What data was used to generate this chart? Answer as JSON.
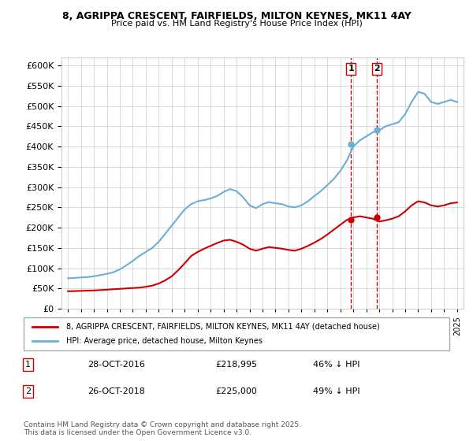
{
  "title1": "8, AGRIPPA CRESCENT, FAIRFIELDS, MILTON KEYNES, MK11 4AY",
  "title2": "Price paid vs. HM Land Registry's House Price Index (HPI)",
  "legend1": "8, AGRIPPA CRESCENT, FAIRFIELDS, MILTON KEYNES, MK11 4AY (detached house)",
  "legend2": "HPI: Average price, detached house, Milton Keynes",
  "annotation1": {
    "num": "1",
    "date": "28-OCT-2016",
    "price": "£218,995",
    "hpi": "46% ↓ HPI"
  },
  "annotation2": {
    "num": "2",
    "date": "26-OCT-2018",
    "price": "£225,000",
    "hpi": "49% ↓ HPI"
  },
  "footer": "Contains HM Land Registry data © Crown copyright and database right 2025.\nThis data is licensed under the Open Government Licence v3.0.",
  "hpi_color": "#6baed6",
  "price_color": "#cc0000",
  "marker1_x": 2016.83,
  "marker2_x": 2018.83,
  "marker1_y_hpi": 405000,
  "marker2_y_hpi": 440000,
  "marker1_y_price": 218995,
  "marker2_y_price": 225000,
  "ylim": [
    0,
    620000
  ],
  "xlim_start": 1994.5,
  "xlim_end": 2025.5,
  "hpi_data": {
    "years": [
      1995,
      1995.5,
      1996,
      1996.5,
      1997,
      1997.5,
      1998,
      1998.5,
      1999,
      1999.5,
      2000,
      2000.5,
      2001,
      2001.5,
      2002,
      2002.5,
      2003,
      2003.5,
      2004,
      2004.5,
      2005,
      2005.5,
      2006,
      2006.5,
      2007,
      2007.5,
      2008,
      2008.5,
      2009,
      2009.5,
      2010,
      2010.5,
      2011,
      2011.5,
      2012,
      2012.5,
      2013,
      2013.5,
      2014,
      2014.5,
      2015,
      2015.5,
      2016,
      2016.5,
      2017,
      2017.5,
      2018,
      2018.5,
      2019,
      2019.5,
      2020,
      2020.5,
      2021,
      2021.5,
      2022,
      2022.5,
      2023,
      2023.5,
      2024,
      2024.5,
      2025
    ],
    "values": [
      75000,
      76000,
      77000,
      78000,
      80000,
      83000,
      86000,
      90000,
      97000,
      107000,
      118000,
      130000,
      140000,
      150000,
      165000,
      185000,
      205000,
      225000,
      245000,
      258000,
      265000,
      268000,
      272000,
      278000,
      288000,
      295000,
      290000,
      275000,
      255000,
      248000,
      258000,
      263000,
      260000,
      258000,
      252000,
      250000,
      255000,
      265000,
      278000,
      290000,
      305000,
      320000,
      340000,
      365000,
      400000,
      415000,
      425000,
      435000,
      440000,
      450000,
      455000,
      460000,
      480000,
      510000,
      535000,
      530000,
      510000,
      505000,
      510000,
      515000,
      510000
    ]
  },
  "price_data": {
    "years": [
      1995,
      1995.5,
      1996,
      1996.5,
      1997,
      1997.5,
      1998,
      1998.5,
      1999,
      1999.5,
      2000,
      2000.5,
      2001,
      2001.5,
      2002,
      2002.5,
      2003,
      2003.5,
      2004,
      2004.5,
      2005,
      2005.5,
      2006,
      2006.5,
      2007,
      2007.5,
      2008,
      2008.5,
      2009,
      2009.5,
      2010,
      2010.5,
      2011,
      2011.5,
      2012,
      2012.5,
      2013,
      2013.5,
      2014,
      2014.5,
      2015,
      2015.5,
      2016,
      2016.5,
      2017,
      2017.5,
      2018,
      2018.5,
      2019,
      2019.5,
      2020,
      2020.5,
      2021,
      2021.5,
      2022,
      2022.5,
      2023,
      2023.5,
      2024,
      2024.5,
      2025
    ],
    "values": [
      43000,
      43500,
      44000,
      44500,
      45000,
      46000,
      47000,
      48000,
      49000,
      50000,
      51000,
      52000,
      54000,
      57000,
      62000,
      70000,
      80000,
      95000,
      112000,
      130000,
      140000,
      148000,
      155000,
      162000,
      168000,
      170000,
      165000,
      158000,
      148000,
      143000,
      148000,
      152000,
      150000,
      148000,
      145000,
      143000,
      148000,
      155000,
      163000,
      172000,
      183000,
      195000,
      207000,
      218995,
      225000,
      228000,
      225000,
      222000,
      215000,
      218000,
      222000,
      228000,
      240000,
      255000,
      265000,
      262000,
      255000,
      252000,
      255000,
      260000,
      262000
    ]
  }
}
